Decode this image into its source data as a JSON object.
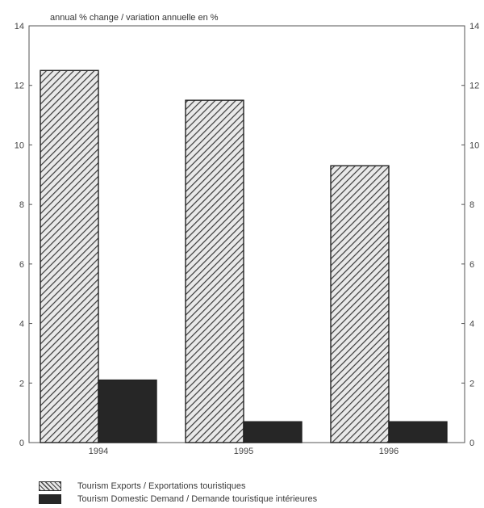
{
  "chart_data": {
    "type": "bar",
    "ylabel": "annual % change / variation annuelle en %",
    "categories": [
      "1994",
      "1995",
      "1996"
    ],
    "series": [
      {
        "name": "Tourism Exports / Exportations touristiques",
        "values": [
          12.5,
          11.5,
          9.3
        ],
        "pattern": "hatched",
        "color": "#3a3a3a"
      },
      {
        "name": "Tourism Domestic Demand / Demande touristique intérieures",
        "values": [
          2.1,
          0.7,
          0.7
        ],
        "pattern": "solid",
        "color": "#262626"
      }
    ],
    "ylim": [
      0,
      14
    ],
    "yticks": [
      0,
      2,
      4,
      6,
      8,
      10,
      12,
      14
    ],
    "grid": false,
    "legend_position": "bottom-left"
  }
}
